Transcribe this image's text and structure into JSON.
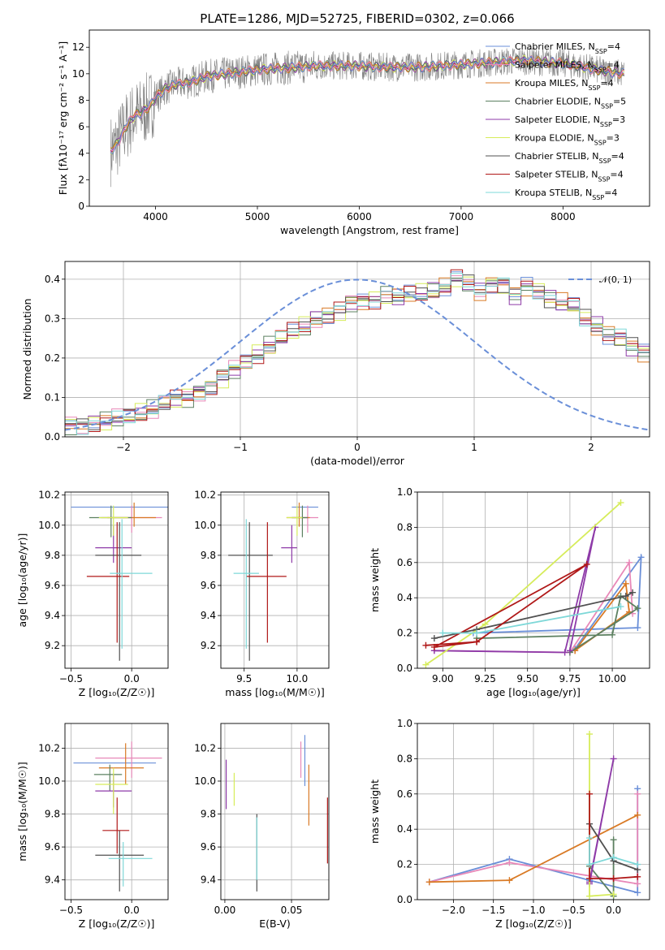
{
  "figure_title": "PLATE=1286, MJD=52725, FIBERID=0302, z=0.066",
  "colors": {
    "chabrier_miles": "#6a8fd8",
    "salpeter_miles": "#e888b8",
    "kroupa_miles": "#d97a25",
    "chabrier_elodie": "#5c8060",
    "salpeter_elodie": "#8e3aa8",
    "kroupa_elodie": "#d6ec5a",
    "chabrier_stelib": "#505050",
    "salpeter_stelib": "#b01818",
    "kroupa_stelib": "#7ed8d8",
    "data": "#808080"
  },
  "chart_data": [
    {
      "id": "spectrum",
      "type": "line",
      "title": "PLATE=1286, MJD=52725, FIBERID=0302, z=0.066",
      "xlabel": "wavelength [Angstrom, rest frame]",
      "ylabel": "Flux [fλ10⁻¹⁷ erg cm⁻² s⁻¹ A⁻¹]",
      "xlim": [
        3350,
        8850
      ],
      "ylim": [
        0,
        13.3
      ],
      "xticks": [
        4000,
        5000,
        6000,
        7000,
        8000
      ],
      "yticks": [
        0,
        2,
        4,
        6,
        8,
        10,
        12
      ],
      "grid": false,
      "legend_position": "right",
      "legend": [
        "Chabrier MILES, N_SSP=4",
        "Salpeter MILES, N_SSP=4",
        "Kroupa MILES, N_SSP=4",
        "Chabrier ELODIE, N_SSP=5",
        "Salpeter ELODIE, N_SSP=3",
        "Kroupa ELODIE, N_SSP=3",
        "Chabrier STELIB, N_SSP=4",
        "Salpeter STELIB, N_SSP=4",
        "Kroupa STELIB, N_SSP=4"
      ],
      "continuum": {
        "x": [
          3560,
          3600,
          3650,
          3700,
          3750,
          3800,
          3850,
          3900,
          3950,
          4000,
          4100,
          4200,
          4300,
          4400,
          4500,
          4600,
          4700,
          4800,
          4900,
          5000,
          5200,
          5400,
          5600,
          5800,
          6000,
          6200,
          6400,
          6600,
          6800,
          7000,
          7200,
          7400,
          7600,
          7800,
          8000,
          8200,
          8400,
          8600
        ],
        "y": [
          4.2,
          4.5,
          5.1,
          5.9,
          6.4,
          6.9,
          7.0,
          7.3,
          7.6,
          8.2,
          8.9,
          9.2,
          9.3,
          9.5,
          9.8,
          9.9,
          10.0,
          10.1,
          10.2,
          10.3,
          10.4,
          10.5,
          10.6,
          10.6,
          10.6,
          10.5,
          10.5,
          10.5,
          10.6,
          10.7,
          10.8,
          10.9,
          11.0,
          10.9,
          10.8,
          10.5,
          10.2,
          10.0
        ]
      }
    },
    {
      "id": "residuals",
      "type": "histogram",
      "xlabel": "(data-model)/error",
      "ylabel": "Normed distribution",
      "xlim": [
        -2.5,
        2.5
      ],
      "ylim": [
        0,
        0.445
      ],
      "xticks": [
        -2,
        -1,
        0,
        1,
        2
      ],
      "yticks": [
        0.0,
        0.1,
        0.2,
        0.3,
        0.4
      ],
      "grid": true,
      "legend_position": "top-right",
      "legend": [
        "𝒩(0, 1)"
      ],
      "bin_width": 0.1,
      "bin_start": -2.5,
      "histogram_values": [
        0.03,
        0.03,
        0.035,
        0.04,
        0.045,
        0.05,
        0.06,
        0.07,
        0.085,
        0.095,
        0.1,
        0.115,
        0.13,
        0.15,
        0.17,
        0.19,
        0.21,
        0.23,
        0.25,
        0.265,
        0.28,
        0.3,
        0.31,
        0.32,
        0.34,
        0.345,
        0.35,
        0.36,
        0.355,
        0.36,
        0.365,
        0.37,
        0.38,
        0.4,
        0.39,
        0.37,
        0.39,
        0.385,
        0.36,
        0.38,
        0.37,
        0.35,
        0.34,
        0.33,
        0.3,
        0.28,
        0.26,
        0.25,
        0.23,
        0.215,
        0.2,
        0.18,
        0.16,
        0.14,
        0.12,
        0.11,
        0.1,
        0.09,
        0.08,
        0.07,
        0.06,
        0.055,
        0.05,
        0.045,
        0.04,
        0.035,
        0.03,
        0.03,
        0.03,
        0.03,
        0.04
      ]
    },
    {
      "id": "age-vs-Z",
      "type": "errorbar",
      "xlabel": "Z [log₁₀(Z/Z☉)]",
      "ylabel": "age  [log₁₀(age/yr)]",
      "xlim": [
        -0.55,
        0.3
      ],
      "ylim": [
        9.05,
        10.22
      ],
      "xticks": [
        -0.5,
        0.0
      ],
      "yticks": [
        9.2,
        9.4,
        9.6,
        9.8,
        10.0,
        10.2
      ],
      "grid": true,
      "points": [
        {
          "series": "Chabrier MILES",
          "x": -0.05,
          "y": 10.12,
          "xerr": [
            0.45,
            0.35
          ],
          "yerr": [
            0.0,
            0.0
          ]
        },
        {
          "series": "Salpeter MILES",
          "x": 0.0,
          "y": 10.05,
          "xerr": [
            0.25,
            0.25
          ],
          "yerr": [
            0.1,
            0.08
          ]
        },
        {
          "series": "Kroupa MILES",
          "x": 0.02,
          "y": 10.05,
          "xerr": [
            0.22,
            0.18
          ],
          "yerr": [
            0.06,
            0.1
          ]
        },
        {
          "series": "Chabrier ELODIE",
          "x": -0.17,
          "y": 10.05,
          "xerr": [
            0.18,
            0.17
          ],
          "yerr": [
            0.13,
            0.08
          ]
        },
        {
          "series": "Salpeter ELODIE",
          "x": -0.15,
          "y": 9.85,
          "xerr": [
            0.15,
            0.15
          ],
          "yerr": [
            0.1,
            0.15
          ]
        },
        {
          "series": "Kroupa ELODIE",
          "x": -0.15,
          "y": 10.05,
          "xerr": [
            0.12,
            0.12
          ],
          "yerr": [
            0.12,
            0.08
          ]
        },
        {
          "series": "Chabrier STELIB",
          "x": -0.1,
          "y": 9.8,
          "xerr": [
            0.2,
            0.18
          ],
          "yerr": [
            0.7,
            0.22
          ]
        },
        {
          "series": "Salpeter STELIB",
          "x": -0.12,
          "y": 9.66,
          "xerr": [
            0.25,
            0.1
          ],
          "yerr": [
            0.44,
            0.36
          ]
        },
        {
          "series": "Kroupa STELIB",
          "x": -0.08,
          "y": 9.68,
          "xerr": [
            0.1,
            0.25
          ],
          "yerr": [
            0.5,
            0.36
          ]
        }
      ]
    },
    {
      "id": "age-vs-mass",
      "type": "errorbar",
      "xlabel": "mass [log₁₀(M/M☉)]",
      "xlim": [
        9.28,
        10.3
      ],
      "ylim": [
        9.05,
        10.22
      ],
      "xticks": [
        9.5,
        10.0
      ],
      "yticks": [
        9.2,
        9.4,
        9.6,
        9.8,
        10.0,
        10.2
      ],
      "grid": true,
      "points": [
        {
          "series": "Chabrier MILES",
          "x": 10.1,
          "y": 10.12,
          "xerr": [
            0.15,
            0.1
          ],
          "yerr": [
            0.0,
            0.0
          ]
        },
        {
          "series": "Salpeter MILES",
          "x": 10.1,
          "y": 10.05,
          "xerr": [
            0.15,
            0.1
          ],
          "yerr": [
            0.1,
            0.08
          ]
        },
        {
          "series": "Kroupa MILES",
          "x": 10.02,
          "y": 10.05,
          "xerr": [
            0.12,
            0.1
          ],
          "yerr": [
            0.06,
            0.1
          ]
        },
        {
          "series": "Chabrier ELODIE",
          "x": 10.05,
          "y": 10.05,
          "xerr": [
            0.1,
            0.05
          ],
          "yerr": [
            0.13,
            0.08
          ]
        },
        {
          "series": "Salpeter ELODIE",
          "x": 9.95,
          "y": 9.85,
          "xerr": [
            0.1,
            0.05
          ],
          "yerr": [
            0.1,
            0.15
          ]
        },
        {
          "series": "Kroupa ELODIE",
          "x": 10.0,
          "y": 10.05,
          "xerr": [
            0.1,
            0.05
          ],
          "yerr": [
            0.12,
            0.08
          ]
        },
        {
          "series": "Chabrier STELIB",
          "x": 9.55,
          "y": 9.8,
          "xerr": [
            0.2,
            0.22
          ],
          "yerr": [
            0.7,
            0.22
          ]
        },
        {
          "series": "Salpeter STELIB",
          "x": 9.72,
          "y": 9.66,
          "xerr": [
            0.2,
            0.18
          ],
          "yerr": [
            0.44,
            0.36
          ]
        },
        {
          "series": "Kroupa STELIB",
          "x": 9.52,
          "y": 9.68,
          "xerr": [
            0.12,
            0.12
          ],
          "yerr": [
            0.5,
            0.36
          ]
        }
      ]
    },
    {
      "id": "weight-vs-age",
      "type": "line",
      "xlabel": "age  [log₁₀(age/yr)]",
      "ylabel": "mass weight",
      "xlim": [
        8.85,
        10.22
      ],
      "ylim": [
        0,
        1.0
      ],
      "xticks": [
        9.0,
        9.25,
        9.5,
        9.75,
        10.0
      ],
      "yticks": [
        0.0,
        0.2,
        0.4,
        0.6,
        0.8,
        1.0
      ],
      "grid": true,
      "series": [
        {
          "name": "Chabrier MILES",
          "x": [
            9.18,
            10.15,
            10.17,
            9.78
          ],
          "y": [
            0.2,
            0.23,
            0.63,
            0.11
          ]
        },
        {
          "name": "Salpeter MILES",
          "x": [
            8.95,
            9.75,
            10.1,
            10.12
          ],
          "y": [
            0.1,
            0.09,
            0.6,
            0.31
          ]
        },
        {
          "name": "Kroupa MILES",
          "x": [
            9.78,
            10.08,
            10.1,
            9.78
          ],
          "y": [
            0.1,
            0.48,
            0.32,
            0.1
          ]
        },
        {
          "name": "Chabrier ELODIE",
          "x": [
            9.2,
            10.0,
            10.05,
            10.15,
            9.75
          ],
          "y": [
            0.17,
            0.19,
            0.41,
            0.34,
            0.09
          ]
        },
        {
          "name": "Salpeter ELODIE",
          "x": [
            8.95,
            9.72,
            9.9,
            9.75
          ],
          "y": [
            0.1,
            0.09,
            0.8,
            0.1
          ]
        },
        {
          "name": "Kroupa ELODIE",
          "x": [
            8.9,
            9.25,
            10.05
          ],
          "y": [
            0.02,
            0.25,
            0.94
          ]
        },
        {
          "name": "Chabrier STELIB",
          "x": [
            8.95,
            9.2,
            10.08,
            10.12
          ],
          "y": [
            0.17,
            0.22,
            0.41,
            0.43
          ]
        },
        {
          "name": "Salpeter STELIB",
          "x": [
            8.9,
            9.2,
            9.85,
            8.95,
            9.2
          ],
          "y": [
            0.13,
            0.15,
            0.59,
            0.12,
            0.15
          ]
        },
        {
          "name": "Kroupa STELIB",
          "x": [
            9.0,
            9.2,
            10.05
          ],
          "y": [
            0.2,
            0.2,
            0.35
          ]
        }
      ]
    },
    {
      "id": "mass-vs-Z",
      "type": "errorbar",
      "xlabel": "Z [log₁₀(Z/Z☉)]",
      "ylabel": "mass [log₁₀(M/M☉)]",
      "xlim": [
        -0.55,
        0.3
      ],
      "ylim": [
        9.28,
        10.35
      ],
      "xticks": [
        -0.5,
        0.0
      ],
      "yticks": [
        9.4,
        9.6,
        9.8,
        10.0,
        10.2
      ],
      "grid": true,
      "points": [
        {
          "series": "Chabrier MILES",
          "x": -0.1,
          "y": 10.11,
          "xerr": [
            0.38,
            0.3
          ],
          "yerr": [
            0.0,
            0.0
          ]
        },
        {
          "series": "Salpeter MILES",
          "x": 0.0,
          "y": 10.14,
          "xerr": [
            0.3,
            0.25
          ],
          "yerr": [
            0.12,
            0.1
          ]
        },
        {
          "series": "Kroupa MILES",
          "x": -0.05,
          "y": 10.08,
          "xerr": [
            0.22,
            0.15
          ],
          "yerr": [
            0.1,
            0.15
          ]
        },
        {
          "series": "Chabrier ELODIE",
          "x": -0.18,
          "y": 10.04,
          "xerr": [
            0.13,
            0.1
          ],
          "yerr": [
            0.1,
            0.06
          ]
        },
        {
          "series": "Salpeter ELODIE",
          "x": -0.15,
          "y": 9.94,
          "xerr": [
            0.15,
            0.15
          ],
          "yerr": [
            0.1,
            0.1
          ]
        },
        {
          "series": "Kroupa ELODIE",
          "x": -0.15,
          "y": 9.98,
          "xerr": [
            0.15,
            0.12
          ],
          "yerr": [
            0.18,
            0.1
          ]
        },
        {
          "series": "Chabrier STELIB",
          "x": -0.1,
          "y": 9.55,
          "xerr": [
            0.2,
            0.2
          ],
          "yerr": [
            0.22,
            0.15
          ]
        },
        {
          "series": "Salpeter STELIB",
          "x": -0.12,
          "y": 9.7,
          "xerr": [
            0.12,
            0.1
          ],
          "yerr": [
            0.14,
            0.2
          ]
        },
        {
          "series": "Kroupa STELIB",
          "x": -0.07,
          "y": 9.53,
          "xerr": [
            0.12,
            0.24
          ],
          "yerr": [
            0.17,
            0.1
          ]
        }
      ]
    },
    {
      "id": "mass-vs-EBV",
      "type": "errorbar",
      "xlabel": "E(B-V)",
      "xlim": [
        -0.003,
        0.078
      ],
      "ylim": [
        9.28,
        10.35
      ],
      "xticks": [
        0.0,
        0.05
      ],
      "xtick_labels": [
        "0.00",
        "0.05"
      ],
      "yticks": [
        9.4,
        9.6,
        9.8,
        10.0,
        10.2
      ],
      "grid": true,
      "points": [
        {
          "series": "Salpeter MILES",
          "x": 0.057,
          "y": 10.14,
          "xerr": [
            0,
            0
          ],
          "yerr": [
            0.12,
            0.1
          ]
        },
        {
          "series": "Chabrier MILES",
          "x": 0.06,
          "y": 10.11,
          "xerr": [
            0,
            0
          ],
          "yerr": [
            0.14,
            0.17
          ]
        },
        {
          "series": "Kroupa MILES",
          "x": 0.063,
          "y": 9.9,
          "xerr": [
            0,
            0
          ],
          "yerr": [
            0.17,
            0.2
          ]
        },
        {
          "series": "Salpeter ELODIE",
          "x": 0.001,
          "y": 9.98,
          "xerr": [
            0,
            0
          ],
          "yerr": [
            0.15,
            0.15
          ]
        },
        {
          "series": "Kroupa ELODIE",
          "x": 0.007,
          "y": 9.95,
          "xerr": [
            0,
            0
          ],
          "yerr": [
            0.1,
            0.1
          ]
        },
        {
          "series": "Chabrier STELIB",
          "x": 0.024,
          "y": 9.55,
          "xerr": [
            0,
            0
          ],
          "yerr": [
            0.22,
            0.25
          ]
        },
        {
          "series": "Kroupa STELIB",
          "x": 0.024,
          "y": 9.58,
          "xerr": [
            0,
            0
          ],
          "yerr": [
            0.18,
            0.2
          ]
        },
        {
          "series": "Salpeter STELIB",
          "x": 0.077,
          "y": 9.7,
          "xerr": [
            0,
            0
          ],
          "yerr": [
            0.2,
            0.2
          ]
        }
      ]
    },
    {
      "id": "weight-vs-Z",
      "type": "line",
      "xlabel": "Z [log₁₀(Z/Z☉)]",
      "ylabel": "mass weight",
      "xlim": [
        -2.45,
        0.45
      ],
      "ylim": [
        0,
        1.0
      ],
      "xticks": [
        -2.0,
        -1.5,
        -1.0,
        -0.5,
        0.0
      ],
      "yticks": [
        0.0,
        0.2,
        0.4,
        0.6,
        0.8,
        1.0
      ],
      "grid": true,
      "series": [
        {
          "name": "Chabrier MILES",
          "x": [
            -2.3,
            -1.3,
            -0.3,
            0.3,
            0.3
          ],
          "y": [
            0.1,
            0.23,
            0.11,
            0.04,
            0.63
          ]
        },
        {
          "name": "Salpeter MILES",
          "x": [
            -2.3,
            -1.3,
            0.3,
            0.3
          ],
          "y": [
            0.1,
            0.21,
            0.09,
            0.6
          ]
        },
        {
          "name": "Kroupa MILES",
          "x": [
            -2.3,
            -1.3,
            0.3
          ],
          "y": [
            0.1,
            0.11,
            0.48
          ]
        },
        {
          "name": "Chabrier ELODIE",
          "x": [
            -0.3,
            0.0,
            0.0
          ],
          "y": [
            0.19,
            0.02,
            0.34
          ]
        },
        {
          "name": "Salpeter ELODIE",
          "x": [
            -0.3,
            0.0,
            -0.3
          ],
          "y": [
            0.1,
            0.8,
            0.09
          ]
        },
        {
          "name": "Kroupa ELODIE",
          "x": [
            -0.3,
            -0.3,
            0.0
          ],
          "y": [
            0.94,
            0.02,
            0.03
          ]
        },
        {
          "name": "Chabrier STELIB",
          "x": [
            -0.3,
            0.0,
            0.3
          ],
          "y": [
            0.43,
            0.22,
            0.17
          ]
        },
        {
          "name": "Salpeter STELIB",
          "x": [
            -0.3,
            -0.3,
            0.0,
            0.3
          ],
          "y": [
            0.6,
            0.12,
            0.12,
            0.13
          ]
        },
        {
          "name": "Kroupa STELIB",
          "x": [
            -0.3,
            -0.3,
            0.0,
            0.3
          ],
          "y": [
            0.35,
            0.2,
            0.24,
            0.2
          ]
        }
      ]
    }
  ]
}
